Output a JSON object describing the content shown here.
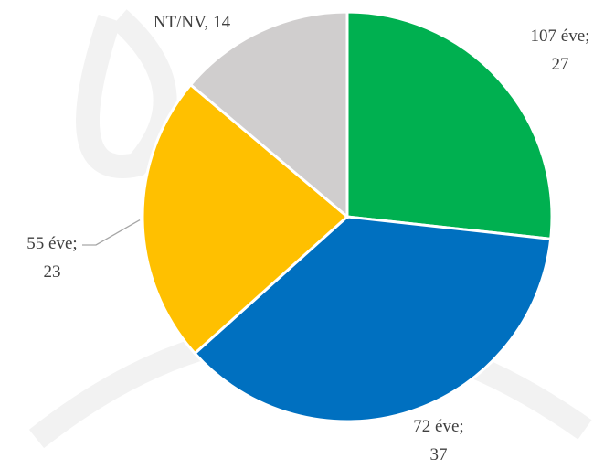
{
  "chart_data": {
    "type": "pie",
    "categories": [
      "107 éve;",
      "72 éve;",
      "55 éve;",
      "NT/NV,"
    ],
    "values": [
      27,
      37,
      23,
      14
    ],
    "colors": [
      "#00b050",
      "#0070c0",
      "#ffc000",
      "#d0cece"
    ]
  }
}
